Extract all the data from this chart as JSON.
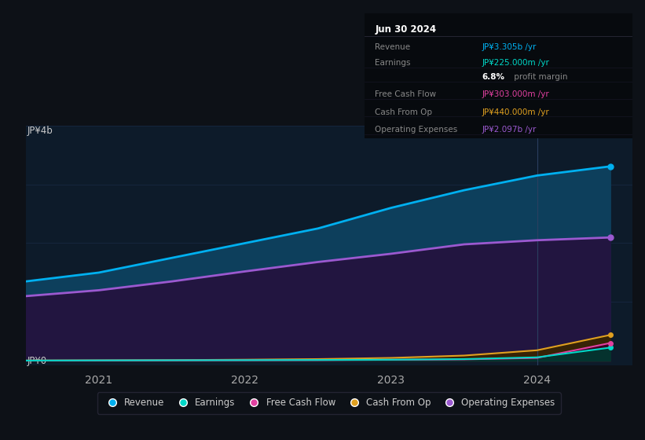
{
  "bg_color": "#0d1117",
  "plot_bg_color": "#0d1b2a",
  "grid_color": "#1e3050",
  "years": [
    2020.5,
    2021.0,
    2021.5,
    2022.0,
    2022.5,
    2023.0,
    2023.5,
    2024.0,
    2024.5
  ],
  "revenue": [
    1350,
    1500,
    1750,
    2000,
    2250,
    2600,
    2900,
    3150,
    3305
  ],
  "op_expenses": [
    1100,
    1200,
    1350,
    1520,
    1680,
    1820,
    1980,
    2050,
    2097
  ],
  "earnings": [
    5,
    8,
    10,
    12,
    15,
    20,
    30,
    60,
    225
  ],
  "fcf": [
    4,
    6,
    8,
    10,
    12,
    18,
    25,
    50,
    303
  ],
  "cash_from_op": [
    6,
    9,
    13,
    20,
    30,
    50,
    90,
    180,
    440
  ],
  "revenue_color": "#00b0f0",
  "revenue_fill": "#0d3f5c",
  "op_expenses_color": "#9b59d0",
  "op_expenses_fill": "#221540",
  "earnings_color": "#00d8c8",
  "earnings_fill": "#003830",
  "fcf_color": "#e040a0",
  "fcf_fill": "#3a0025",
  "cash_from_op_color": "#e0a020",
  "cash_from_op_fill": "#3a2500",
  "ylabel_top": "JP¥4b",
  "ylabel_bottom": "JP¥0",
  "ylim": [
    -80,
    4000
  ],
  "xlim": [
    2020.5,
    2024.65
  ],
  "xticks": [
    2021,
    2022,
    2023,
    2024
  ],
  "xtick_labels": [
    "2021",
    "2022",
    "2023",
    "2024"
  ],
  "highlight_x": 2024.0,
  "info_date": "Jun 30 2024",
  "info_rows": [
    {
      "label": "Revenue",
      "value": "JP¥3.305b /yr",
      "value_color": "#00b0f0"
    },
    {
      "label": "Earnings",
      "value": "JP¥225.000m /yr",
      "value_color": "#00d8c8"
    },
    {
      "label": "",
      "value": "profit margin",
      "value_color": "#aaaaaa",
      "bold": "6.8%"
    },
    {
      "label": "Free Cash Flow",
      "value": "JP¥303.000m /yr",
      "value_color": "#e040a0"
    },
    {
      "label": "Cash From Op",
      "value": "JP¥440.000m /yr",
      "value_color": "#e0a020"
    },
    {
      "label": "Operating Expenses",
      "value": "JP¥2.097b /yr",
      "value_color": "#9b59d0"
    }
  ],
  "legend_items": [
    {
      "label": "Revenue",
      "color": "#00b0f0"
    },
    {
      "label": "Earnings",
      "color": "#00d8c8"
    },
    {
      "label": "Free Cash Flow",
      "color": "#e040a0"
    },
    {
      "label": "Cash From Op",
      "color": "#e0a020"
    },
    {
      "label": "Operating Expenses",
      "color": "#9b59d0"
    }
  ]
}
